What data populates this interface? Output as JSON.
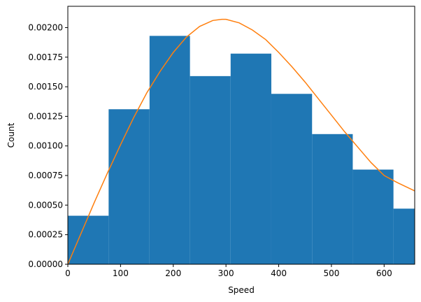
{
  "chart_data": {
    "type": "histogram",
    "xlabel": "Speed",
    "ylabel": "Count",
    "xlim": [
      0,
      658
    ],
    "ylim": [
      0,
      0.00218
    ],
    "x_ticks": [
      0,
      100,
      200,
      300,
      400,
      500,
      600
    ],
    "y_ticks": [
      0,
      0.00025,
      0.0005,
      0.00075,
      0.001,
      0.00125,
      0.0015,
      0.00175,
      0.002
    ],
    "y_tick_labels": [
      "0.00000",
      "0.00025",
      "0.00050",
      "0.00075",
      "0.00100",
      "0.00125",
      "0.00150",
      "0.00175",
      "0.00200"
    ],
    "bins": [
      {
        "x0": 0,
        "x1": 77.4,
        "value": 0.00041
      },
      {
        "x0": 77.4,
        "x1": 155.0,
        "value": 0.00131
      },
      {
        "x0": 155.0,
        "x1": 231.7,
        "value": 0.00193
      },
      {
        "x0": 231.7,
        "x1": 308.8,
        "value": 0.00159
      },
      {
        "x0": 308.8,
        "x1": 386.0,
        "value": 0.00178
      },
      {
        "x0": 386.0,
        "x1": 463.3,
        "value": 0.00144
      },
      {
        "x0": 463.3,
        "x1": 540.5,
        "value": 0.0011
      },
      {
        "x0": 540.5,
        "x1": 617.7,
        "value": 0.0008
      },
      {
        "x0": 617.7,
        "x1": 658,
        "value": 0.00047
      }
    ],
    "curve": {
      "type": "maxwell-fit",
      "x": [
        0,
        25,
        50,
        75,
        100,
        125,
        150,
        175,
        200,
        225,
        250,
        275,
        292,
        300,
        325,
        350,
        375,
        400,
        425,
        450,
        475,
        500,
        525,
        550,
        575,
        600,
        625,
        658
      ],
      "y": [
        0,
        0.00026,
        0.00052,
        0.00077,
        0.00101,
        0.00124,
        0.00145,
        0.00163,
        0.00179,
        0.00192,
        0.00201,
        0.00206,
        0.00207,
        0.00207,
        0.00204,
        0.00198,
        0.0019,
        0.00179,
        0.00167,
        0.00154,
        0.0014,
        0.00126,
        0.00112,
        0.00099,
        0.00086,
        0.00075,
        0.00069,
        0.00062
      ]
    },
    "colors": {
      "bars": "#1f77b4",
      "curve": "#ff7f0e"
    }
  }
}
